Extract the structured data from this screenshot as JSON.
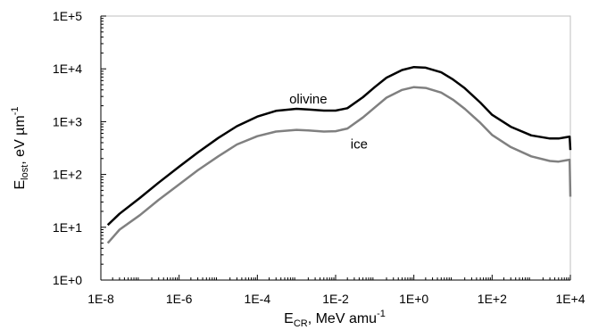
{
  "chart_data": {
    "type": "line",
    "title": "",
    "xscale": "log",
    "yscale": "log",
    "xlim": [
      1e-08,
      10000
    ],
    "ylim": [
      1,
      100000
    ],
    "grid": false,
    "legend": "none",
    "xlabel": {
      "main": "E",
      "sub": "CR",
      "rest": ", MeV amu",
      "sup": "-1"
    },
    "ylabel": {
      "main": "E",
      "sub": "lost",
      "rest": ", eV µm",
      "sup": "-1"
    },
    "xticks": [
      {
        "value": 1e-08,
        "label": "1E-8"
      },
      {
        "value": 1e-06,
        "label": "1E-6"
      },
      {
        "value": 0.0001,
        "label": "1E-4"
      },
      {
        "value": 0.01,
        "label": "1E-2"
      },
      {
        "value": 1,
        "label": "1E+0"
      },
      {
        "value": 100,
        "label": "1E+2"
      },
      {
        "value": 10000,
        "label": "1E+4"
      }
    ],
    "yticks": [
      {
        "value": 1,
        "label": "1E+0"
      },
      {
        "value": 10,
        "label": "1E+1"
      },
      {
        "value": 100,
        "label": "1E+2"
      },
      {
        "value": 1000,
        "label": "1E+3"
      },
      {
        "value": 10000,
        "label": "1E+4"
      },
      {
        "value": 100000,
        "label": "1E+5"
      }
    ],
    "series": [
      {
        "name": "olivine",
        "color": "#000000",
        "x": [
          1.5e-08,
          3e-08,
          1e-07,
          3e-07,
          1e-06,
          3e-06,
          1e-05,
          3e-05,
          0.0001,
          0.0003,
          0.001,
          0.002,
          0.005,
          0.01,
          0.02,
          0.05,
          0.1,
          0.2,
          0.5,
          1,
          2,
          5,
          10,
          20,
          50,
          100,
          300,
          1000,
          3000,
          5000,
          9500,
          9600,
          10000
        ],
        "y": [
          11,
          18,
          36,
          70,
          140,
          260,
          490,
          820,
          1250,
          1600,
          1750,
          1700,
          1620,
          1620,
          1800,
          2900,
          4500,
          6800,
          9500,
          10800,
          10500,
          8600,
          6300,
          4300,
          2300,
          1350,
          800,
          550,
          480,
          480,
          520,
          520,
          290
        ]
      },
      {
        "name": "ice",
        "color": "#808080",
        "x": [
          1.5e-08,
          3e-08,
          1e-07,
          3e-07,
          1e-06,
          3e-06,
          1e-05,
          3e-05,
          0.0001,
          0.0003,
          0.001,
          0.002,
          0.005,
          0.01,
          0.02,
          0.05,
          0.1,
          0.2,
          0.5,
          1,
          2,
          5,
          10,
          20,
          50,
          100,
          300,
          1000,
          3000,
          5000,
          9500,
          9600,
          10000
        ],
        "y": [
          5,
          9,
          17,
          33,
          65,
          120,
          220,
          370,
          530,
          650,
          700,
          680,
          650,
          660,
          740,
          1200,
          1850,
          2850,
          4000,
          4500,
          4350,
          3550,
          2600,
          1750,
          950,
          560,
          330,
          220,
          180,
          175,
          190,
          190,
          38
        ]
      }
    ],
    "annotations": [
      {
        "text": "olivine",
        "x": 0.002,
        "y": 2200
      },
      {
        "text": "ice",
        "x": 0.04,
        "y": 310
      }
    ]
  }
}
